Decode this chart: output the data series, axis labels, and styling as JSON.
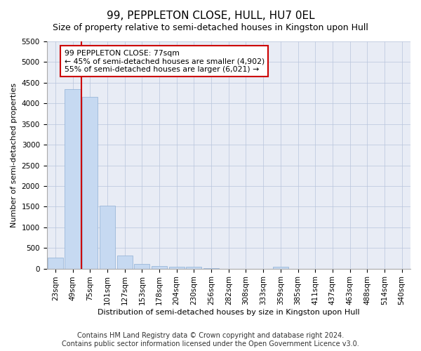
{
  "title": "99, PEPPLETON CLOSE, HULL, HU7 0EL",
  "subtitle": "Size of property relative to semi-detached houses in Kingston upon Hull",
  "xlabel": "Distribution of semi-detached houses by size in Kingston upon Hull",
  "ylabel": "Number of semi-detached properties",
  "categories": [
    "23sqm",
    "49sqm",
    "75sqm",
    "101sqm",
    "127sqm",
    "153sqm",
    "178sqm",
    "204sqm",
    "230sqm",
    "256sqm",
    "282sqm",
    "308sqm",
    "333sqm",
    "359sqm",
    "385sqm",
    "411sqm",
    "437sqm",
    "463sqm",
    "488sqm",
    "514sqm",
    "540sqm"
  ],
  "values": [
    270,
    4350,
    4150,
    1530,
    310,
    115,
    65,
    45,
    50,
    5,
    0,
    0,
    0,
    50,
    0,
    0,
    0,
    0,
    0,
    0,
    0
  ],
  "bar_color": "#c6d9f1",
  "bar_edge_color": "#8fafd4",
  "vline_color": "#cc0000",
  "annotation_text": "99 PEPPLETON CLOSE: 77sqm\n← 45% of semi-detached houses are smaller (4,902)\n55% of semi-detached houses are larger (6,021) →",
  "annotation_box_color": "#ffffff",
  "annotation_box_edge": "#cc0000",
  "ylim": [
    0,
    5500
  ],
  "yticks": [
    0,
    500,
    1000,
    1500,
    2000,
    2500,
    3000,
    3500,
    4000,
    4500,
    5000,
    5500
  ],
  "footer_line1": "Contains HM Land Registry data © Crown copyright and database right 2024.",
  "footer_line2": "Contains public sector information licensed under the Open Government Licence v3.0.",
  "bg_color": "#ffffff",
  "plot_bg_color": "#e8ecf5",
  "grid_color": "#b8c4dc",
  "title_fontsize": 11,
  "subtitle_fontsize": 9,
  "axis_label_fontsize": 8,
  "tick_fontsize": 7.5,
  "footer_fontsize": 7
}
